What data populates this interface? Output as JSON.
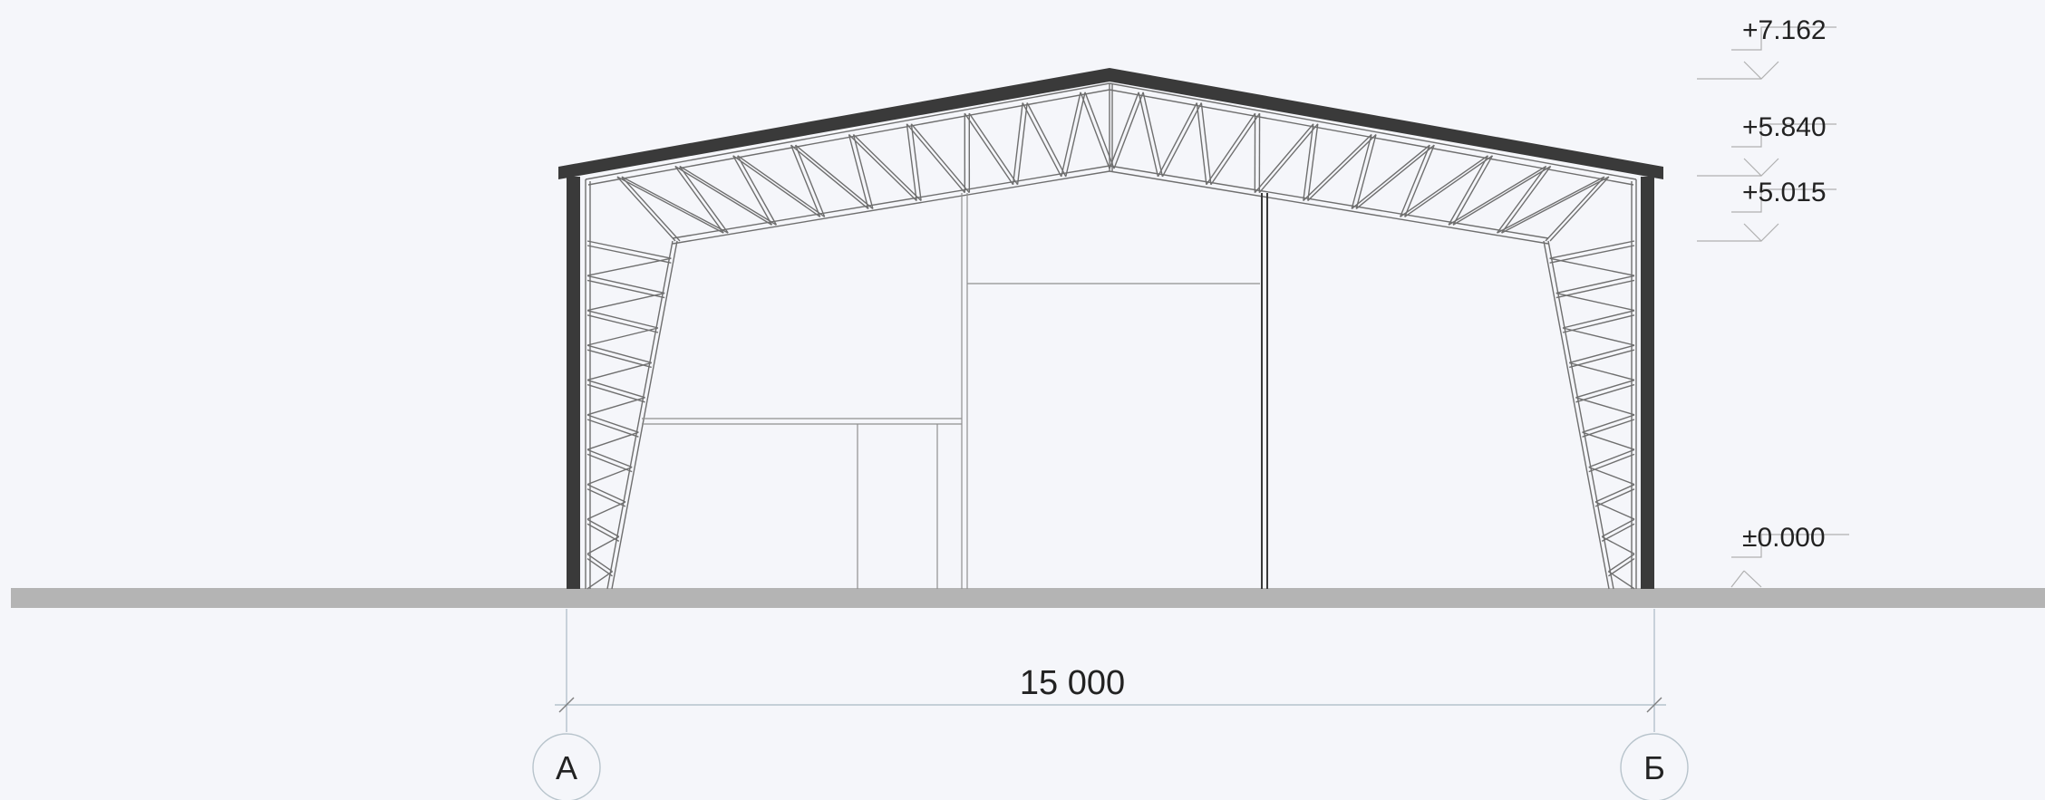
{
  "section": {
    "levels": [
      {
        "label": "+7.162",
        "value": 7.162
      },
      {
        "label": "+5.840",
        "value": 5.84
      },
      {
        "label": "+5.015",
        "value": 5.015
      },
      {
        "label": "±0.000",
        "value": 0.0
      }
    ],
    "span_dimension": "15 000",
    "grid_axes": [
      {
        "label": "А"
      },
      {
        "label": "Б"
      }
    ]
  },
  "colors": {
    "background": "#f5f6fa",
    "structure": "#3a3a3a",
    "ground": "#b4b4b4",
    "thin_lines": "#8f8f8f",
    "dimension_lines": "#a9b9c4"
  }
}
